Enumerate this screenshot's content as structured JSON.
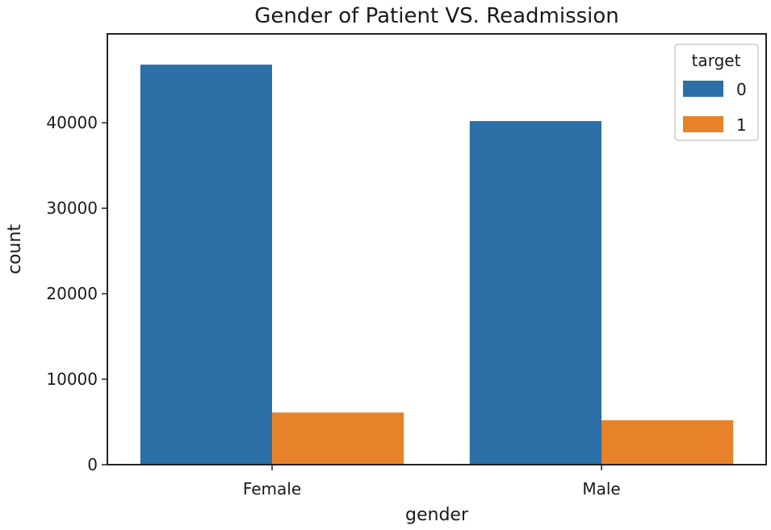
{
  "chart_data": {
    "type": "bar",
    "title": "Gender of Patient VS. Readmission",
    "xlabel": "gender",
    "ylabel": "count",
    "categories": [
      "Female",
      "Male"
    ],
    "series": [
      {
        "name": "0",
        "values": [
          46800,
          40200
        ],
        "color": "#2c6fa6"
      },
      {
        "name": "1",
        "values": [
          6100,
          5200
        ],
        "color": "#e8822a"
      }
    ],
    "ylim": [
      0,
      50400
    ],
    "yticks": [
      0,
      10000,
      20000,
      30000,
      40000
    ],
    "legend": {
      "title": "target",
      "placement": "top-right"
    },
    "grid": false
  }
}
